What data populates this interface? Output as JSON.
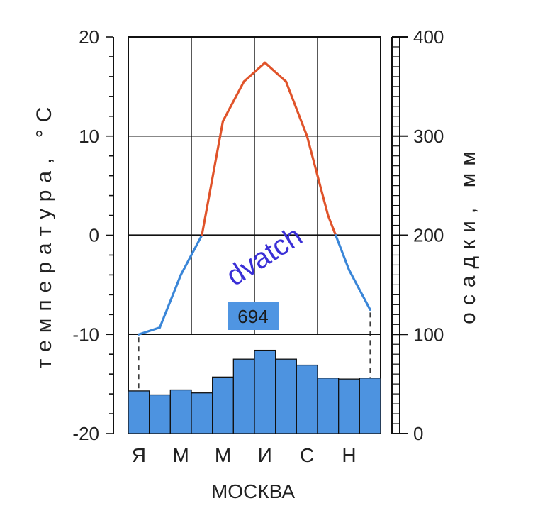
{
  "chart_data": {
    "type": "climatogram",
    "station": "МОСКВА",
    "total_precipitation": "694",
    "left_axis": {
      "label": "температура, °С",
      "ticks": [
        "20",
        "10",
        "0",
        "-10",
        "-20"
      ],
      "range": [
        -20,
        20
      ]
    },
    "right_axis": {
      "label": "осадки, мм",
      "ticks": [
        "400",
        "300",
        "200",
        "100",
        "0"
      ],
      "range": [
        0,
        400
      ]
    },
    "month_labels": [
      "Я",
      "М",
      "М",
      "И",
      "С",
      "Н"
    ],
    "months": 12,
    "temperature_c": [
      -10,
      -9.3,
      -4,
      0,
      11.5,
      15.5,
      17.4,
      15.5,
      10,
      2,
      -3.5,
      -7.5
    ],
    "precipitation_mm": [
      43,
      39,
      44,
      41,
      57,
      75,
      84,
      75,
      69,
      56,
      55,
      56
    ],
    "colors": {
      "temp_above_zero": "#e0532a",
      "temp_below_zero": "#3a86d8",
      "bars": "#4d93e0",
      "grid": "#111111"
    },
    "watermark": "dvatch"
  }
}
